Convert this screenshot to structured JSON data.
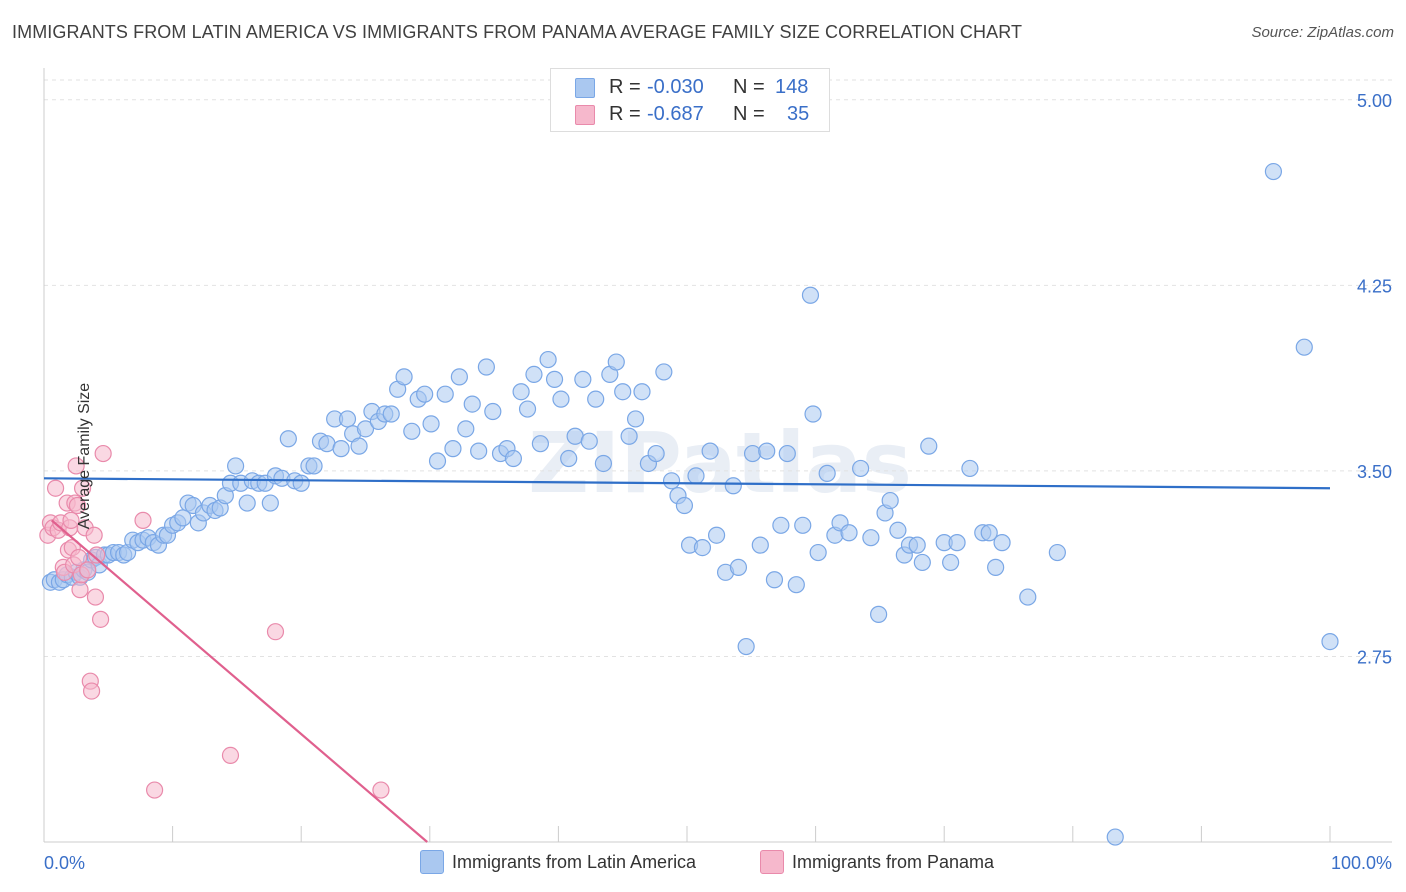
{
  "header": {
    "title": "IMMIGRANTS FROM LATIN AMERICA VS IMMIGRANTS FROM PANAMA AVERAGE FAMILY SIZE CORRELATION CHART",
    "source": "Source: ZipAtlas.com"
  },
  "watermark": "ZIPatlas",
  "correlation": {
    "rows": [
      {
        "r_label": "R =",
        "r_value": "-0.030",
        "n_label": "N =",
        "n_value": "148",
        "color": "#aac8f0"
      },
      {
        "r_label": "R =",
        "r_value": "-0.687",
        "n_label": "N =",
        "n_value": "35",
        "color": "#f6b8cc"
      }
    ]
  },
  "chart_data": {
    "type": "scatter",
    "title": "IMMIGRANTS FROM LATIN AMERICA VS IMMIGRANTS FROM PANAMA AVERAGE FAMILY SIZE CORRELATION CHART",
    "xlabel": "",
    "ylabel": "Average Family Size",
    "xlim": [
      0,
      100
    ],
    "ylim": [
      2.0,
      5.08
    ],
    "x_tick_labels": [
      "0.0%",
      "100.0%"
    ],
    "y_ticks": [
      2.75,
      3.5,
      4.25,
      5.0
    ],
    "y_tick_labels": [
      "2.75",
      "3.50",
      "4.25",
      "5.00"
    ],
    "grid": "horizontal dashed",
    "legend_position": "bottom",
    "series": [
      {
        "name": "Immigrants from Latin America",
        "color": "#7aa7e6",
        "fill": "#aac8f0",
        "trend": {
          "x": [
            0,
            100
          ],
          "y": [
            3.47,
            3.43
          ],
          "color": "#2f6fc8"
        },
        "points": [
          [
            0.5,
            3.05
          ],
          [
            0.8,
            3.06
          ],
          [
            1.2,
            3.05
          ],
          [
            1.5,
            3.06
          ],
          [
            1.8,
            3.08
          ],
          [
            2.2,
            3.07
          ],
          [
            2.5,
            3.09
          ],
          [
            2.8,
            3.07
          ],
          [
            3.1,
            3.1
          ],
          [
            3.4,
            3.09
          ],
          [
            3.7,
            3.14
          ],
          [
            4.0,
            3.15
          ],
          [
            4.3,
            3.12
          ],
          [
            4.7,
            3.16
          ],
          [
            5.0,
            3.16
          ],
          [
            5.4,
            3.17
          ],
          [
            5.8,
            3.17
          ],
          [
            6.2,
            3.16
          ],
          [
            6.5,
            3.17
          ],
          [
            6.9,
            3.22
          ],
          [
            7.3,
            3.21
          ],
          [
            7.7,
            3.22
          ],
          [
            8.1,
            3.23
          ],
          [
            8.5,
            3.21
          ],
          [
            8.9,
            3.2
          ],
          [
            9.3,
            3.24
          ],
          [
            9.6,
            3.24
          ],
          [
            10.0,
            3.28
          ],
          [
            10.4,
            3.29
          ],
          [
            10.8,
            3.31
          ],
          [
            11.2,
            3.37
          ],
          [
            11.6,
            3.36
          ],
          [
            12.0,
            3.29
          ],
          [
            12.4,
            3.33
          ],
          [
            12.9,
            3.36
          ],
          [
            13.3,
            3.34
          ],
          [
            13.7,
            3.35
          ],
          [
            14.1,
            3.4
          ],
          [
            14.5,
            3.45
          ],
          [
            14.9,
            3.52
          ],
          [
            15.3,
            3.45
          ],
          [
            15.8,
            3.37
          ],
          [
            16.2,
            3.46
          ],
          [
            16.7,
            3.45
          ],
          [
            17.2,
            3.45
          ],
          [
            17.6,
            3.37
          ],
          [
            18.0,
            3.48
          ],
          [
            18.5,
            3.47
          ],
          [
            19.0,
            3.63
          ],
          [
            19.5,
            3.46
          ],
          [
            20.0,
            3.45
          ],
          [
            20.6,
            3.52
          ],
          [
            21.0,
            3.52
          ],
          [
            21.5,
            3.62
          ],
          [
            22.0,
            3.61
          ],
          [
            22.6,
            3.71
          ],
          [
            23.1,
            3.59
          ],
          [
            23.6,
            3.71
          ],
          [
            24.0,
            3.65
          ],
          [
            24.5,
            3.6
          ],
          [
            25.0,
            3.67
          ],
          [
            25.5,
            3.74
          ],
          [
            26.0,
            3.7
          ],
          [
            26.5,
            3.73
          ],
          [
            27.0,
            3.73
          ],
          [
            27.5,
            3.83
          ],
          [
            28.0,
            3.88
          ],
          [
            28.6,
            3.66
          ],
          [
            29.1,
            3.79
          ],
          [
            29.6,
            3.81
          ],
          [
            30.1,
            3.69
          ],
          [
            30.6,
            3.54
          ],
          [
            31.2,
            3.81
          ],
          [
            31.8,
            3.59
          ],
          [
            32.3,
            3.88
          ],
          [
            32.8,
            3.67
          ],
          [
            33.3,
            3.77
          ],
          [
            33.8,
            3.58
          ],
          [
            34.4,
            3.92
          ],
          [
            34.9,
            3.74
          ],
          [
            35.5,
            3.57
          ],
          [
            36.0,
            3.59
          ],
          [
            36.5,
            3.55
          ],
          [
            37.1,
            3.82
          ],
          [
            37.6,
            3.75
          ],
          [
            38.1,
            3.89
          ],
          [
            38.6,
            3.61
          ],
          [
            39.2,
            3.95
          ],
          [
            39.7,
            3.87
          ],
          [
            40.2,
            3.79
          ],
          [
            40.8,
            3.55
          ],
          [
            41.3,
            3.64
          ],
          [
            41.9,
            3.87
          ],
          [
            42.4,
            3.62
          ],
          [
            42.9,
            3.79
          ],
          [
            43.5,
            3.53
          ],
          [
            44.0,
            3.89
          ],
          [
            44.5,
            3.94
          ],
          [
            45.0,
            3.82
          ],
          [
            45.5,
            3.64
          ],
          [
            46.0,
            3.71
          ],
          [
            46.5,
            3.82
          ],
          [
            47.0,
            3.53
          ],
          [
            47.6,
            3.57
          ],
          [
            48.2,
            3.9
          ],
          [
            48.8,
            3.46
          ],
          [
            49.3,
            3.4
          ],
          [
            49.8,
            3.36
          ],
          [
            50.2,
            3.2
          ],
          [
            50.7,
            3.48
          ],
          [
            51.2,
            3.19
          ],
          [
            51.8,
            3.58
          ],
          [
            52.3,
            3.24
          ],
          [
            53.0,
            3.09
          ],
          [
            53.6,
            3.44
          ],
          [
            54.0,
            3.11
          ],
          [
            54.6,
            2.79
          ],
          [
            55.1,
            3.57
          ],
          [
            55.7,
            3.2
          ],
          [
            56.2,
            3.58
          ],
          [
            56.8,
            3.06
          ],
          [
            57.3,
            3.28
          ],
          [
            57.8,
            3.57
          ],
          [
            58.5,
            3.04
          ],
          [
            59.0,
            3.28
          ],
          [
            59.6,
            4.21
          ],
          [
            59.8,
            3.73
          ],
          [
            60.2,
            3.17
          ],
          [
            60.9,
            3.49
          ],
          [
            61.5,
            3.24
          ],
          [
            61.9,
            3.29
          ],
          [
            62.6,
            3.25
          ],
          [
            63.5,
            3.51
          ],
          [
            64.3,
            3.23
          ],
          [
            64.9,
            2.92
          ],
          [
            65.4,
            3.33
          ],
          [
            65.8,
            3.38
          ],
          [
            66.4,
            3.26
          ],
          [
            66.9,
            3.16
          ],
          [
            67.3,
            3.2
          ],
          [
            67.9,
            3.2
          ],
          [
            68.3,
            3.13
          ],
          [
            68.8,
            3.6
          ],
          [
            70.0,
            3.21
          ],
          [
            70.5,
            3.13
          ],
          [
            71.0,
            3.21
          ],
          [
            72.0,
            3.51
          ],
          [
            73.0,
            3.25
          ],
          [
            73.5,
            3.25
          ],
          [
            74.0,
            3.11
          ],
          [
            74.5,
            3.21
          ],
          [
            76.5,
            2.99
          ],
          [
            78.8,
            3.17
          ],
          [
            83.3,
            2.02
          ],
          [
            95.6,
            4.71
          ],
          [
            98.0,
            4.0
          ],
          [
            100.0,
            2.81
          ]
        ]
      },
      {
        "name": "Immigrants from Panama",
        "color": "#e98aab",
        "fill": "#f6b8cc",
        "trend": {
          "x": [
            0.6,
            29.8
          ],
          "y": [
            3.3,
            2.0
          ],
          "color": "#e0608e"
        },
        "points": [
          [
            0.3,
            3.24
          ],
          [
            0.5,
            3.29
          ],
          [
            0.7,
            3.27
          ],
          [
            0.9,
            3.43
          ],
          [
            1.1,
            3.26
          ],
          [
            1.3,
            3.29
          ],
          [
            1.5,
            3.11
          ],
          [
            1.6,
            3.09
          ],
          [
            1.8,
            3.37
          ],
          [
            1.9,
            3.18
          ],
          [
            2.0,
            3.27
          ],
          [
            2.1,
            3.3
          ],
          [
            2.2,
            3.19
          ],
          [
            2.3,
            3.12
          ],
          [
            2.4,
            3.37
          ],
          [
            2.5,
            3.52
          ],
          [
            2.6,
            3.36
          ],
          [
            2.7,
            3.15
          ],
          [
            2.8,
            3.02
          ],
          [
            2.9,
            3.08
          ],
          [
            3.0,
            3.43
          ],
          [
            3.2,
            3.27
          ],
          [
            3.4,
            3.1
          ],
          [
            3.6,
            2.65
          ],
          [
            3.7,
            2.61
          ],
          [
            3.9,
            3.24
          ],
          [
            4.0,
            2.99
          ],
          [
            4.1,
            3.16
          ],
          [
            4.4,
            2.9
          ],
          [
            4.6,
            3.57
          ],
          [
            7.7,
            3.3
          ],
          [
            8.6,
            2.21
          ],
          [
            14.5,
            2.35
          ],
          [
            18.0,
            2.85
          ],
          [
            26.2,
            2.21
          ]
        ]
      }
    ]
  },
  "legend": {
    "items": [
      {
        "label": "Immigrants from Latin America",
        "color": "#aac8f0",
        "border": "#7aa7e6"
      },
      {
        "label": "Immigrants from Panama",
        "color": "#f6b8cc",
        "border": "#e98aab"
      }
    ]
  }
}
